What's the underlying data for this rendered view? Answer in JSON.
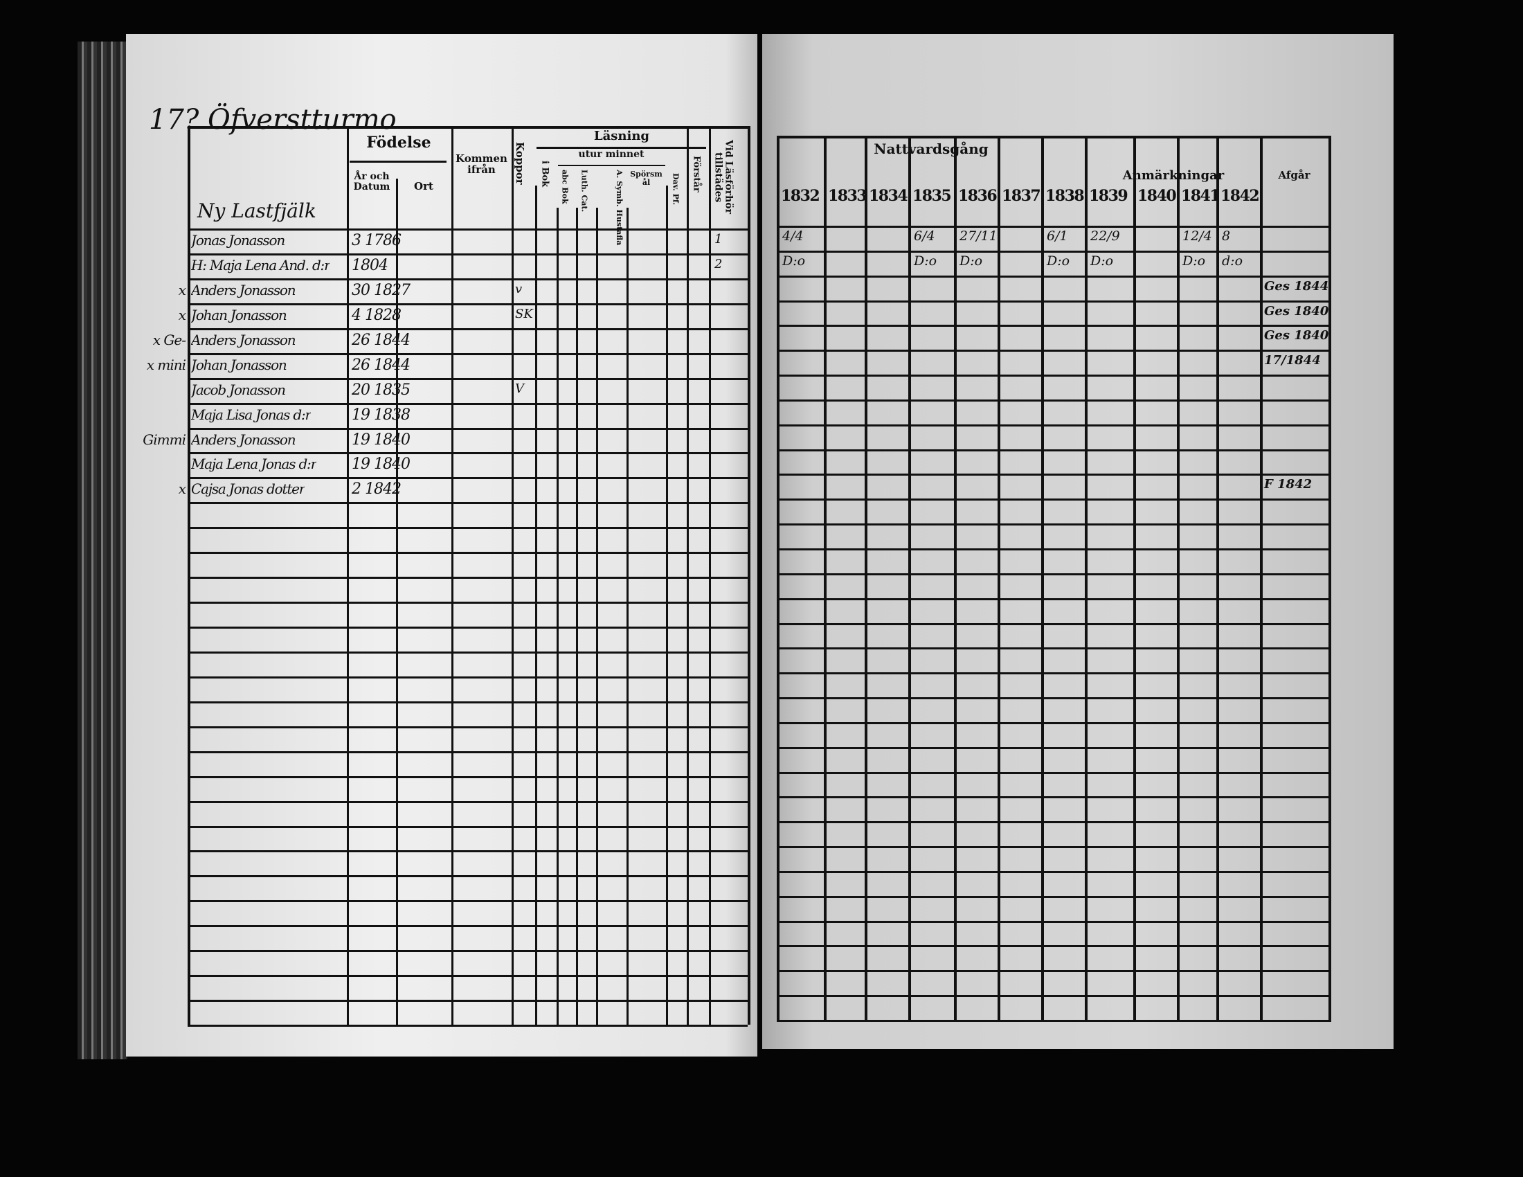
{
  "left_page": {
    "title": "17? Öfverstturmo",
    "household_heading": "Ny Lastfjälk",
    "headers": {
      "fodelse": "Födelse",
      "ar_och_datum": "År och Datum",
      "ort": "Ort",
      "kommen_ifran": "Kommen ifrån",
      "koppor": "Koppor",
      "lasning": "Läsning",
      "i_bok": "i Bok",
      "utur_minnet": "utur minnet",
      "abc_bok": "abc Bok",
      "luth_cat": "Luth. Cat.",
      "symb_hustafla": "A. Symb. Hustafla",
      "sporsmal": "Spörsmål",
      "dav_pf": "Dav. Pf.",
      "forstar": "Förstår",
      "lasforhor": "Vid Läsförhör tillstädes"
    },
    "rows": [
      {
        "mark": "",
        "name": "Jonas Jonasson",
        "birth": "3 1786",
        "koppor": "",
        "forhor": "1"
      },
      {
        "mark": "",
        "name": "H: Maja Lena And. d:r",
        "birth": "1804",
        "koppor": "",
        "forhor": "2"
      },
      {
        "mark": "x",
        "name": "Anders Jonasson",
        "birth": "30 1827",
        "koppor": "v",
        "forhor": ""
      },
      {
        "mark": "x",
        "name": "Johan Jonasson",
        "birth": "4 1828",
        "koppor": "SK",
        "forhor": ""
      },
      {
        "mark": "x Ge-",
        "name": "Anders Jonasson",
        "birth": "26 1844",
        "koppor": "",
        "forhor": ""
      },
      {
        "mark": "x mini",
        "name": "Johan Jonasson",
        "birth": "26 1844",
        "koppor": "",
        "forhor": ""
      },
      {
        "mark": "",
        "name": "Jacob Jonasson",
        "birth": "20 1835",
        "koppor": "V",
        "forhor": ""
      },
      {
        "mark": "",
        "name": "Maja Lisa Jonas d:r",
        "birth": "19 1838",
        "koppor": "",
        "forhor": ""
      },
      {
        "mark": "Gimmi",
        "name": "Anders Jonasson",
        "birth": "19 1840",
        "koppor": "",
        "forhor": ""
      },
      {
        "mark": "",
        "name": "Maja Lena Jonas d:r",
        "birth": "19 1840",
        "koppor": "",
        "forhor": ""
      },
      {
        "mark": "x",
        "name": "Cajsa Jonas dotter",
        "birth": "2 1842",
        "koppor": "",
        "forhor": ""
      }
    ]
  },
  "right_page": {
    "headers": {
      "nattvardsgang": "Nattvardsgång",
      "anmarkningar": "Anmärkningar",
      "afgar": "Afgår",
      "years": [
        "1832",
        "1833",
        "1834",
        "1835",
        "1836",
        "1837",
        "1838",
        "1839",
        "1840",
        "1841",
        "1842"
      ]
    },
    "rows": [
      [
        "4/4",
        "",
        "",
        "6/4",
        "27/11",
        "",
        "6/1",
        "22/9",
        "",
        "12/4",
        "8"
      ],
      [
        "D:o",
        "",
        "",
        "D:o",
        "D:o",
        "",
        "D:o",
        "D:o",
        "",
        "D:o",
        "d:o"
      ]
    ],
    "afgar_entries": [
      "",
      "",
      "Ges 1844",
      "Ges 1840",
      "Ges 1840",
      "17/1844",
      "",
      "",
      "",
      "",
      "F 1842"
    ]
  }
}
